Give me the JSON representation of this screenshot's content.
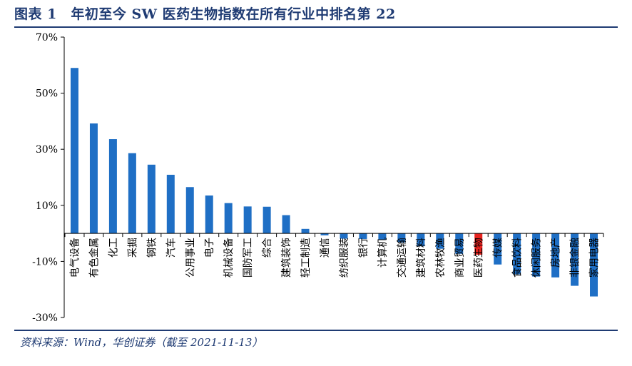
{
  "title": "图表 1　年初至今 SW 医药生物指数在所有行业中排名第 22",
  "source": "资料来源：Wind，华创证券（截至 2021-11-13）",
  "colors": {
    "bar": "#1f6fc5",
    "highlight": "#e8231f",
    "rule": "#1f3b73"
  },
  "chart_data": {
    "type": "bar",
    "ylim": [
      -30,
      70
    ],
    "yticks": [
      70,
      50,
      30,
      10,
      -10,
      -30
    ],
    "ytick_labels": [
      "70%",
      "50%",
      "30%",
      "10%",
      "-10%",
      "-30%"
    ],
    "grid": false,
    "highlight_category": "医药生物",
    "categories": [
      "电气设备",
      "有色金属",
      "化工",
      "采掘",
      "钢铁",
      "汽车",
      "公用事业",
      "电子",
      "机械设备",
      "国防军工",
      "综合",
      "建筑装饰",
      "轻工制造",
      "通信",
      "纺织服装",
      "银行",
      "计算机",
      "交通运输",
      "建筑材料",
      "农林牧渔",
      "商业贸易",
      "医药生物",
      "传媒",
      "食品饮料",
      "休闲服务",
      "房地产",
      "非银金融",
      "家用电器"
    ],
    "values": [
      59,
      39.2,
      33.6,
      28.6,
      24.5,
      20.9,
      16.5,
      13.5,
      10.8,
      9.6,
      9.5,
      6.5,
      1.6,
      -0.7,
      -1.9,
      -2.0,
      -2.3,
      -3.2,
      -4.6,
      -5.5,
      -7.3,
      -7.6,
      -11.1,
      -14.6,
      -15.4,
      -15.7,
      -18.7,
      -22.5
    ]
  }
}
